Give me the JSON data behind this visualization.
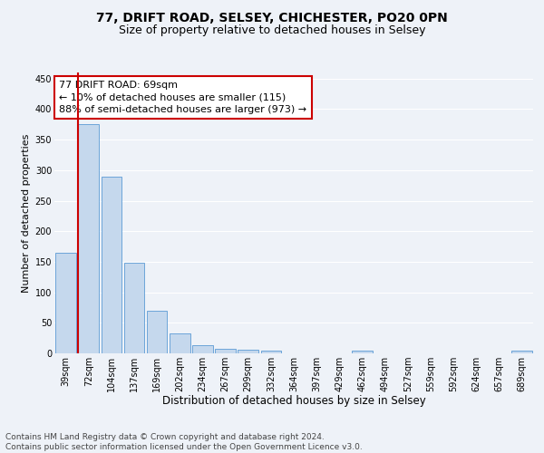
{
  "title1": "77, DRIFT ROAD, SELSEY, CHICHESTER, PO20 0PN",
  "title2": "Size of property relative to detached houses in Selsey",
  "xlabel": "Distribution of detached houses by size in Selsey",
  "ylabel": "Number of detached properties",
  "categories": [
    "39sqm",
    "72sqm",
    "104sqm",
    "137sqm",
    "169sqm",
    "202sqm",
    "234sqm",
    "267sqm",
    "299sqm",
    "332sqm",
    "364sqm",
    "397sqm",
    "429sqm",
    "462sqm",
    "494sqm",
    "527sqm",
    "559sqm",
    "592sqm",
    "624sqm",
    "657sqm",
    "689sqm"
  ],
  "values": [
    165,
    375,
    290,
    148,
    70,
    33,
    14,
    8,
    6,
    4,
    0,
    0,
    0,
    5,
    0,
    0,
    0,
    0,
    0,
    0,
    4
  ],
  "bar_color": "#c5d8ed",
  "bar_edge_color": "#5b9bd5",
  "highlight_line_color": "#cc0000",
  "annotation_line1": "77 DRIFT ROAD: 69sqm",
  "annotation_line2": "← 10% of detached houses are smaller (115)",
  "annotation_line3": "88% of semi-detached houses are larger (973) →",
  "annotation_box_color": "#ffffff",
  "annotation_box_edge": "#cc0000",
  "ylim": [
    0,
    460
  ],
  "yticks": [
    0,
    50,
    100,
    150,
    200,
    250,
    300,
    350,
    400,
    450
  ],
  "footer": "Contains HM Land Registry data © Crown copyright and database right 2024.\nContains public sector information licensed under the Open Government Licence v3.0.",
  "bg_color": "#eef2f8",
  "grid_color": "#ffffff",
  "title1_fontsize": 10,
  "title2_fontsize": 9,
  "xlabel_fontsize": 8.5,
  "ylabel_fontsize": 8,
  "tick_fontsize": 7,
  "annotation_fontsize": 8,
  "footer_fontsize": 6.5
}
